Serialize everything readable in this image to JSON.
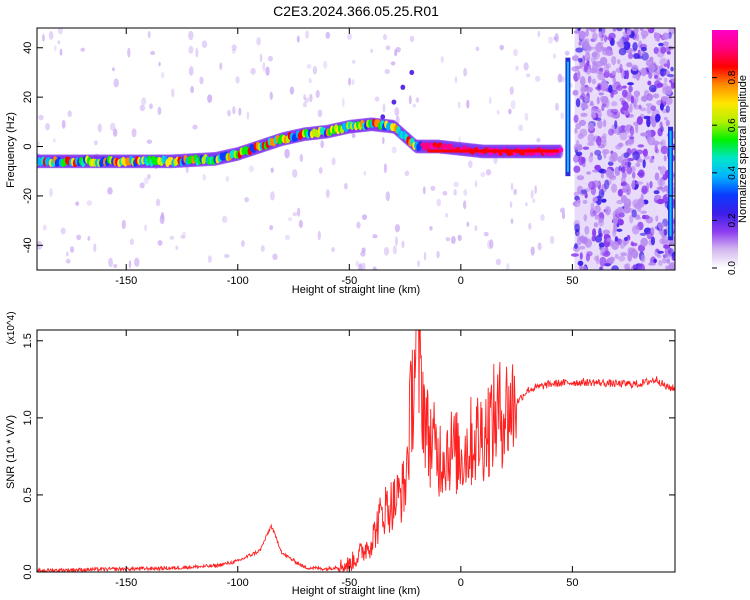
{
  "title": "C2E3.2024.366.05.25.R01",
  "chart_data": [
    {
      "type": "heatmap",
      "panel": "top",
      "xlabel": "Height of straight line (km)",
      "ylabel": "Frequency (Hz)",
      "xlim": [
        -190,
        96
      ],
      "ylim": [
        -50,
        48
      ],
      "xticks": [
        -150,
        -100,
        -50,
        0,
        50
      ],
      "yticks": [
        -40,
        -20,
        0,
        20,
        40
      ],
      "grid": false,
      "colorbar": {
        "label": "Normalized spectral amplitude",
        "range": [
          0,
          1
        ],
        "ticks": [
          "0.0",
          "0.2",
          "0.4",
          "0.6",
          "0.8"
        ],
        "colors": [
          "#ffffff",
          "#d4b8f0",
          "#8c3cf0",
          "#3a1ee8",
          "#0a3cff",
          "#00b4ff",
          "#00e6c8",
          "#00f000",
          "#b4f000",
          "#ffe600",
          "#ff8c00",
          "#ff0000",
          "#ff0080",
          "#ff00c8"
        ]
      },
      "ridge": [
        {
          "x": -190,
          "y": -6
        },
        {
          "x": -170,
          "y": -6
        },
        {
          "x": -150,
          "y": -6
        },
        {
          "x": -130,
          "y": -6
        },
        {
          "x": -110,
          "y": -5
        },
        {
          "x": -100,
          "y": -3
        },
        {
          "x": -90,
          "y": 0
        },
        {
          "x": -80,
          "y": 3
        },
        {
          "x": -70,
          "y": 5
        },
        {
          "x": -60,
          "y": 6
        },
        {
          "x": -50,
          "y": 8
        },
        {
          "x": -40,
          "y": 9
        },
        {
          "x": -30,
          "y": 8
        },
        {
          "x": -25,
          "y": 4
        },
        {
          "x": -20,
          "y": 0
        },
        {
          "x": -10,
          "y": 0
        },
        {
          "x": 0,
          "y": -1
        },
        {
          "x": 10,
          "y": -2
        },
        {
          "x": 20,
          "y": -2
        },
        {
          "x": 30,
          "y": -2
        },
        {
          "x": 40,
          "y": -2
        },
        {
          "x": 45,
          "y": -2
        }
      ],
      "branch": [
        {
          "x": -35,
          "y": 12
        },
        {
          "x": -30,
          "y": 18
        },
        {
          "x": -26,
          "y": 24
        },
        {
          "x": -22,
          "y": 30
        }
      ],
      "noise_region": {
        "x_start": 51,
        "x_end": 96
      }
    },
    {
      "type": "line",
      "panel": "bottom",
      "xlabel": "Height of straight line (km)",
      "ylabel": "SNR (10 * V/V)",
      "y_multiplier": "(x10^4)",
      "xlim": [
        -190,
        96
      ],
      "ylim": [
        0,
        1.57
      ],
      "xticks": [
        -150,
        -100,
        -50,
        0,
        50
      ],
      "yticks": [
        "0.0",
        "0.5",
        "1.0",
        "1.5"
      ],
      "grid": false,
      "series": [
        {
          "color": "#ff2020",
          "points": [
            {
              "x": -190,
              "y": 0.01
            },
            {
              "x": -170,
              "y": 0.015
            },
            {
              "x": -150,
              "y": 0.02
            },
            {
              "x": -130,
              "y": 0.025
            },
            {
              "x": -110,
              "y": 0.04
            },
            {
              "x": -100,
              "y": 0.07
            },
            {
              "x": -90,
              "y": 0.14
            },
            {
              "x": -85,
              "y": 0.3
            },
            {
              "x": -80,
              "y": 0.12
            },
            {
              "x": -70,
              "y": 0.03
            },
            {
              "x": -60,
              "y": 0.02
            },
            {
              "x": -50,
              "y": 0.05
            },
            {
              "x": -45,
              "y": 0.12
            },
            {
              "x": -40,
              "y": 0.2
            },
            {
              "x": -35,
              "y": 0.4
            },
            {
              "x": -30,
              "y": 0.45
            },
            {
              "x": -25,
              "y": 0.55
            },
            {
              "x": -20,
              "y": 1.5
            },
            {
              "x": -15,
              "y": 0.9
            },
            {
              "x": -10,
              "y": 0.75
            },
            {
              "x": -5,
              "y": 0.8
            },
            {
              "x": 0,
              "y": 0.75
            },
            {
              "x": 5,
              "y": 0.85
            },
            {
              "x": 10,
              "y": 0.9
            },
            {
              "x": 15,
              "y": 1.0
            },
            {
              "x": 20,
              "y": 1.05
            },
            {
              "x": 25,
              "y": 1.1
            },
            {
              "x": 30,
              "y": 1.18
            },
            {
              "x": 40,
              "y": 1.22
            },
            {
              "x": 50,
              "y": 1.23
            },
            {
              "x": 60,
              "y": 1.23
            },
            {
              "x": 70,
              "y": 1.22
            },
            {
              "x": 80,
              "y": 1.22
            },
            {
              "x": 88,
              "y": 1.25
            },
            {
              "x": 92,
              "y": 1.2
            },
            {
              "x": 96,
              "y": 1.19
            }
          ]
        }
      ]
    }
  ]
}
